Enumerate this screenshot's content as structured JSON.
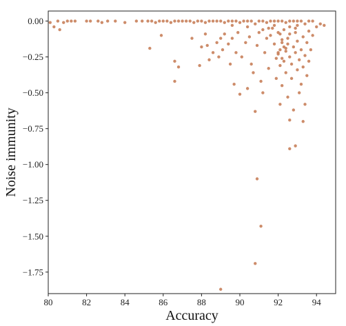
{
  "chart_data": {
    "type": "scatter",
    "xlabel": "Accuracy",
    "ylabel": "Noise immunity",
    "xlim": [
      80,
      95
    ],
    "ylim": [
      -1.9,
      0.07
    ],
    "x_ticks": [
      80,
      82,
      84,
      86,
      88,
      90,
      92,
      94
    ],
    "x_tick_labels": [
      "80",
      "82",
      "84",
      "86",
      "88",
      "90",
      "92",
      "94"
    ],
    "y_ticks": [
      0,
      -0.25,
      -0.5,
      -0.75,
      -1.0,
      -1.25,
      -1.5,
      -1.75
    ],
    "y_tick_labels": [
      "0.00",
      "−0.25",
      "−0.50",
      "−0.75",
      "−1.00",
      "−1.25",
      "−1.50",
      "−1.75"
    ],
    "grid": false,
    "marker_color": "#c8805a",
    "points": [
      [
        80.1,
        -0.01
      ],
      [
        80.3,
        -0.04
      ],
      [
        80.5,
        0.0
      ],
      [
        80.6,
        -0.06
      ],
      [
        80.8,
        -0.01
      ],
      [
        81.0,
        0.0
      ],
      [
        81.2,
        0.0
      ],
      [
        81.4,
        0.0
      ],
      [
        82.0,
        0.0
      ],
      [
        82.2,
        0.0
      ],
      [
        82.6,
        0.0
      ],
      [
        82.8,
        -0.01
      ],
      [
        83.1,
        0.0
      ],
      [
        83.5,
        0.0
      ],
      [
        84.0,
        -0.01
      ],
      [
        84.6,
        0.0
      ],
      [
        84.9,
        0.0
      ],
      [
        85.2,
        0.0
      ],
      [
        85.4,
        0.0
      ],
      [
        85.6,
        -0.01
      ],
      [
        85.8,
        0.0
      ],
      [
        86.0,
        0.0
      ],
      [
        86.2,
        0.0
      ],
      [
        86.4,
        -0.01
      ],
      [
        86.6,
        0.0
      ],
      [
        86.8,
        0.0
      ],
      [
        87.0,
        0.0
      ],
      [
        87.2,
        0.0
      ],
      [
        87.4,
        0.0
      ],
      [
        87.6,
        -0.01
      ],
      [
        87.8,
        0.0
      ],
      [
        88.0,
        0.0
      ],
      [
        88.2,
        -0.01
      ],
      [
        88.4,
        0.0
      ],
      [
        88.6,
        0.0
      ],
      [
        88.8,
        0.0
      ],
      [
        89.0,
        0.0
      ],
      [
        89.2,
        -0.01
      ],
      [
        89.4,
        0.0
      ],
      [
        89.6,
        0.0
      ],
      [
        89.8,
        0.0
      ],
      [
        90.0,
        -0.01
      ],
      [
        90.2,
        0.0
      ],
      [
        90.4,
        0.0
      ],
      [
        90.6,
        0.0
      ],
      [
        90.8,
        -0.02
      ],
      [
        91.0,
        0.0
      ],
      [
        91.2,
        0.0
      ],
      [
        91.4,
        -0.01
      ],
      [
        91.6,
        0.0
      ],
      [
        91.8,
        0.0
      ],
      [
        92.0,
        0.0
      ],
      [
        92.2,
        0.0
      ],
      [
        92.4,
        -0.01
      ],
      [
        92.6,
        0.0
      ],
      [
        92.8,
        0.0
      ],
      [
        93.0,
        0.0
      ],
      [
        93.2,
        0.0
      ],
      [
        93.4,
        -0.02
      ],
      [
        93.6,
        0.0
      ],
      [
        93.8,
        0.0
      ],
      [
        94.0,
        -0.04
      ],
      [
        94.2,
        -0.02
      ],
      [
        94.4,
        -0.03
      ],
      [
        85.3,
        -0.19
      ],
      [
        85.9,
        -0.1
      ],
      [
        86.6,
        -0.28
      ],
      [
        86.6,
        -0.42
      ],
      [
        86.8,
        -0.32
      ],
      [
        87.5,
        -0.12
      ],
      [
        87.9,
        -0.31
      ],
      [
        88.0,
        -0.18
      ],
      [
        88.2,
        -0.09
      ],
      [
        88.3,
        -0.17
      ],
      [
        88.4,
        -0.27
      ],
      [
        88.6,
        -0.22
      ],
      [
        88.8,
        -0.15
      ],
      [
        88.9,
        -0.25
      ],
      [
        89.0,
        -0.12
      ],
      [
        89.1,
        -0.2
      ],
      [
        89.2,
        -0.09
      ],
      [
        89.4,
        -0.16
      ],
      [
        89.5,
        -0.3
      ],
      [
        89.6,
        -0.12
      ],
      [
        89.7,
        -0.44
      ],
      [
        89.8,
        -0.22
      ],
      [
        89.9,
        -0.08
      ],
      [
        90.0,
        -0.51
      ],
      [
        90.1,
        -0.25
      ],
      [
        90.3,
        -0.15
      ],
      [
        90.4,
        -0.47
      ],
      [
        90.5,
        -0.11
      ],
      [
        90.6,
        -0.3
      ],
      [
        90.7,
        -0.36
      ],
      [
        90.8,
        -0.63
      ],
      [
        90.9,
        -0.17
      ],
      [
        91.0,
        -0.08
      ],
      [
        91.1,
        -0.42
      ],
      [
        91.2,
        -0.5
      ],
      [
        91.3,
        -0.22
      ],
      [
        91.4,
        -0.12
      ],
      [
        91.5,
        -0.33
      ],
      [
        91.6,
        -0.1
      ],
      [
        91.7,
        -0.05
      ],
      [
        91.8,
        -0.16
      ],
      [
        91.9,
        -0.26
      ],
      [
        91.9,
        -0.4
      ],
      [
        92.0,
        -0.08
      ],
      [
        92.0,
        -0.22
      ],
      [
        92.1,
        -0.58
      ],
      [
        92.1,
        -0.31
      ],
      [
        92.2,
        -0.15
      ],
      [
        92.2,
        -0.45
      ],
      [
        92.3,
        -0.28
      ],
      [
        92.3,
        -0.06
      ],
      [
        92.4,
        -0.36
      ],
      [
        92.4,
        -0.19
      ],
      [
        92.5,
        -0.53
      ],
      [
        92.5,
        -0.12
      ],
      [
        92.6,
        -0.25
      ],
      [
        92.6,
        -0.09
      ],
      [
        92.7,
        -0.4
      ],
      [
        92.7,
        -0.3
      ],
      [
        92.8,
        -0.18
      ],
      [
        92.8,
        -0.62
      ],
      [
        92.9,
        -0.22
      ],
      [
        92.9,
        -0.05
      ],
      [
        93.0,
        -0.34
      ],
      [
        93.0,
        -0.14
      ],
      [
        93.1,
        -0.5
      ],
      [
        93.1,
        -0.27
      ],
      [
        93.2,
        -0.2
      ],
      [
        93.2,
        -0.44
      ],
      [
        93.3,
        -0.11
      ],
      [
        93.3,
        -0.32
      ],
      [
        93.4,
        -0.58
      ],
      [
        93.4,
        -0.24
      ],
      [
        93.5,
        -0.15
      ],
      [
        93.5,
        -0.38
      ],
      [
        93.6,
        -0.07
      ],
      [
        93.6,
        -0.28
      ],
      [
        93.7,
        -0.2
      ],
      [
        93.8,
        -0.1
      ],
      [
        92.0,
        -0.23
      ],
      [
        92.1,
        -0.2
      ],
      [
        92.2,
        -0.26
      ],
      [
        92.3,
        -0.18
      ],
      [
        92.4,
        -0.21
      ],
      [
        92.2,
        -0.13
      ],
      [
        92.5,
        -0.16
      ],
      [
        92.1,
        -0.09
      ],
      [
        91.5,
        -0.05
      ],
      [
        91.8,
        -0.03
      ],
      [
        92.6,
        -0.04
      ],
      [
        93.0,
        -0.03
      ],
      [
        90.4,
        -0.04
      ],
      [
        89.6,
        -0.03
      ],
      [
        91.2,
        -0.06
      ],
      [
        92.9,
        -0.08
      ],
      [
        93.3,
        -0.7
      ],
      [
        92.6,
        -0.69
      ],
      [
        92.6,
        -0.89
      ],
      [
        92.9,
        -0.87
      ],
      [
        90.9,
        -1.1
      ],
      [
        91.1,
        -1.43
      ],
      [
        90.8,
        -1.69
      ],
      [
        89.0,
        -1.87
      ]
    ]
  }
}
